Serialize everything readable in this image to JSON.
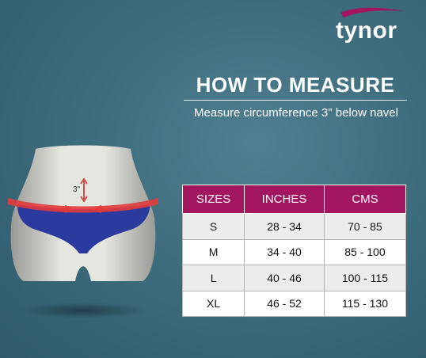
{
  "brand": {
    "name": "tynor",
    "swoosh_color": "#a1165e"
  },
  "heading": {
    "title": "HOW TO MEASURE",
    "subtitle": "Measure circumference 3\" below navel"
  },
  "figure": {
    "marker_label": "3\"",
    "tape_color": "#e23b3b",
    "brief_color": "#2a3a9e"
  },
  "table": {
    "headers": [
      "SIZES",
      "INCHES",
      "CMS"
    ],
    "rows": [
      [
        "S",
        "28 - 34",
        "70 - 85"
      ],
      [
        "M",
        "34 - 40",
        "85 - 100"
      ],
      [
        "L",
        "40 - 46",
        "100 - 115"
      ],
      [
        "XL",
        "46 - 52",
        "115 - 130"
      ]
    ],
    "header_color": "#a1165e"
  }
}
